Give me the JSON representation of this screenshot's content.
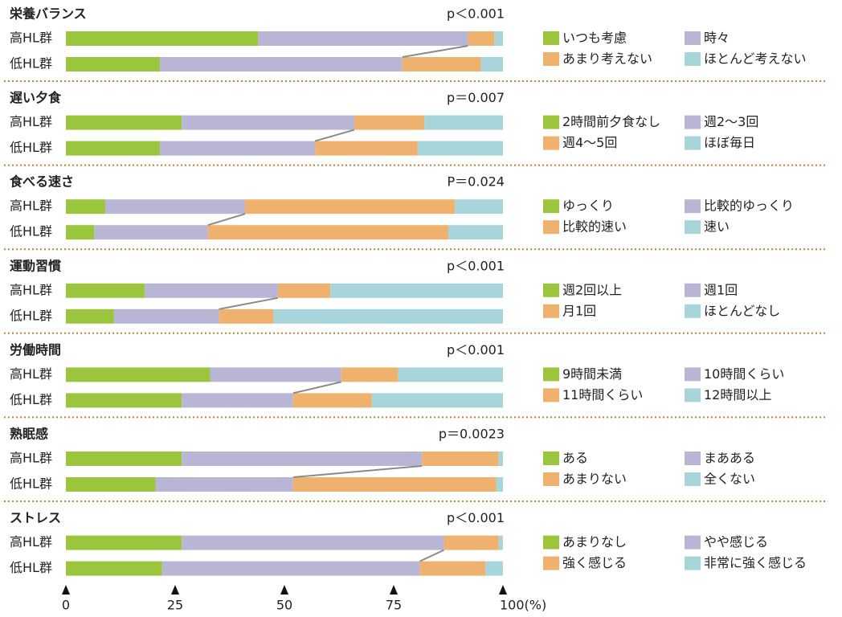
{
  "chart_data": [
    {
      "type": "stacked-bar",
      "title": "栄養バランス",
      "annotation": "p＜0.001",
      "categories": [
        "高HL群",
        "低HL群"
      ],
      "xlim": [
        0,
        100
      ],
      "series": [
        {
          "name": "いつも考慮",
          "color": "#9ac53d",
          "values": [
            44,
            21.5
          ]
        },
        {
          "name": "時々",
          "color": "#b9b5d5",
          "values": [
            48,
            55.5
          ]
        },
        {
          "name": "あまり考えない",
          "color": "#efb26e",
          "values": [
            6,
            18
          ]
        },
        {
          "name": "ほとんど考えない",
          "color": "#a7d5da",
          "values": [
            2,
            5
          ]
        }
      ]
    },
    {
      "type": "stacked-bar",
      "title": "遅い夕食",
      "annotation": "p＝0.007",
      "categories": [
        "高HL群",
        "低HL群"
      ],
      "xlim": [
        0,
        100
      ],
      "series": [
        {
          "name": "2時間前夕食なし",
          "color": "#9ac53d",
          "values": [
            26.5,
            21.5
          ]
        },
        {
          "name": "週2～3回",
          "color": "#b9b5d5",
          "values": [
            39.5,
            35.5
          ]
        },
        {
          "name": "週4～5回",
          "color": "#efb26e",
          "values": [
            16,
            23.5
          ]
        },
        {
          "name": "ほぼ毎日",
          "color": "#a7d5da",
          "values": [
            18,
            19.5
          ]
        }
      ]
    },
    {
      "type": "stacked-bar",
      "title": "食べる速さ",
      "annotation": "P＝0.024",
      "categories": [
        "高HL群",
        "低HL群"
      ],
      "xlim": [
        0,
        100
      ],
      "series": [
        {
          "name": "ゆっくり",
          "color": "#9ac53d",
          "values": [
            9,
            6.5
          ]
        },
        {
          "name": "比較的ゆっくり",
          "color": "#b9b5d5",
          "values": [
            32,
            26
          ]
        },
        {
          "name": "比較的速い",
          "color": "#efb26e",
          "values": [
            48,
            55
          ]
        },
        {
          "name": "速い",
          "color": "#a7d5da",
          "values": [
            11,
            12.5
          ]
        }
      ]
    },
    {
      "type": "stacked-bar",
      "title": "運動習慣",
      "annotation": "p＜0.001",
      "categories": [
        "高HL群",
        "低HL群"
      ],
      "xlim": [
        0,
        100
      ],
      "series": [
        {
          "name": "週2回以上",
          "color": "#9ac53d",
          "values": [
            18,
            11
          ]
        },
        {
          "name": "週1回",
          "color": "#b9b5d5",
          "values": [
            30.5,
            24
          ]
        },
        {
          "name": "月1回",
          "color": "#efb26e",
          "values": [
            12,
            12.5
          ]
        },
        {
          "name": "ほとんどなし",
          "color": "#a7d5da",
          "values": [
            39.5,
            52.5
          ]
        }
      ]
    },
    {
      "type": "stacked-bar",
      "title": "労働時間",
      "annotation": "p＜0.001",
      "categories": [
        "高HL群",
        "低HL群"
      ],
      "xlim": [
        0,
        100
      ],
      "series": [
        {
          "name": "9時間未満",
          "color": "#9ac53d",
          "values": [
            33,
            26.5
          ]
        },
        {
          "name": "10時間くらい",
          "color": "#b9b5d5",
          "values": [
            30,
            25.5
          ]
        },
        {
          "name": "11時間くらい",
          "color": "#efb26e",
          "values": [
            13,
            18
          ]
        },
        {
          "name": "12時間以上",
          "color": "#a7d5da",
          "values": [
            24,
            30
          ]
        }
      ]
    },
    {
      "type": "stacked-bar",
      "title": "熟眠感",
      "annotation": "p＝0.0023",
      "categories": [
        "高HL群",
        "低HL群"
      ],
      "xlim": [
        0,
        100
      ],
      "series": [
        {
          "name": "ある",
          "color": "#9ac53d",
          "values": [
            26.5,
            20.5
          ]
        },
        {
          "name": "まあある",
          "color": "#b9b5d5",
          "values": [
            55,
            31.5
          ]
        },
        {
          "name": "あまりない",
          "color": "#efb26e",
          "values": [
            17.5,
            46.5
          ]
        },
        {
          "name": "全くない",
          "color": "#a7d5da",
          "values": [
            1,
            1.5
          ]
        }
      ]
    },
    {
      "type": "stacked-bar",
      "title": "ストレス",
      "annotation": "p＜0.001",
      "categories": [
        "高HL群",
        "低HL群"
      ],
      "xlim": [
        0,
        100
      ],
      "xticks": [
        0,
        25,
        50,
        75,
        {
          "value": 100,
          "label": "100(%)"
        }
      ],
      "series": [
        {
          "name": "あまりなし",
          "color": "#9ac53d",
          "values": [
            26.5,
            22
          ]
        },
        {
          "name": "やや感じる",
          "color": "#b9b5d5",
          "values": [
            60,
            59
          ]
        },
        {
          "name": "強く感じる",
          "color": "#efb26e",
          "values": [
            12.5,
            15
          ]
        },
        {
          "name": "非常に強く感じる",
          "color": "#a7d5da",
          "values": [
            1,
            4
          ]
        }
      ]
    }
  ]
}
